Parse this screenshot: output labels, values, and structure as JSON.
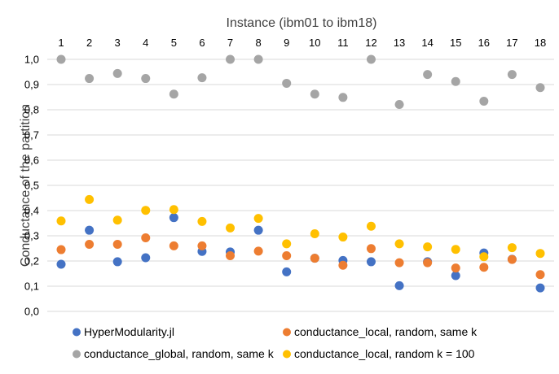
{
  "chart_data": {
    "type": "scatter",
    "title": "",
    "xlabel": "Instance (ibm01 to ibm18)",
    "ylabel": "Conductance of the partition",
    "x": [
      1,
      2,
      3,
      4,
      5,
      6,
      7,
      8,
      9,
      10,
      11,
      12,
      13,
      14,
      15,
      16,
      17,
      18
    ],
    "x_tick_labels": [
      "1",
      "2",
      "3",
      "4",
      "5",
      "6",
      "7",
      "8",
      "9",
      "10",
      "11",
      "12",
      "13",
      "14",
      "15",
      "16",
      "17",
      "18"
    ],
    "x_axis_position": "top",
    "ylim": [
      0,
      1.0
    ],
    "y_ticks": [
      0,
      0.1,
      0.2,
      0.3,
      0.4,
      0.5,
      0.6,
      0.7,
      0.8,
      0.9,
      1.0
    ],
    "y_tick_labels": [
      "0,0",
      "0,1",
      "0,2",
      "0,3",
      "0,4",
      "0,5",
      "0,6",
      "0,7",
      "0,8",
      "0,9",
      "1,0"
    ],
    "grid": "horizontal",
    "legend_position": "bottom",
    "series": [
      {
        "name": "HyperModularity.jl",
        "color": "#4472c4",
        "values": [
          0.187,
          0.322,
          0.197,
          0.213,
          0.372,
          0.238,
          0.236,
          0.322,
          0.157,
          0.211,
          0.202,
          0.197,
          0.102,
          0.197,
          0.142,
          0.232,
          0.207,
          0.093
        ]
      },
      {
        "name": "conductance_local, random, same k",
        "color": "#ed7d31",
        "values": [
          0.245,
          0.266,
          0.266,
          0.292,
          0.26,
          0.26,
          0.221,
          0.239,
          0.221,
          0.211,
          0.183,
          0.249,
          0.193,
          0.193,
          0.172,
          0.175,
          0.206,
          0.146
        ]
      },
      {
        "name": "conductance_global, random, same k",
        "color": "#a5a5a5",
        "values": [
          1.0,
          0.924,
          0.944,
          0.924,
          0.862,
          0.927,
          1.0,
          1.0,
          0.905,
          0.862,
          0.849,
          1.0,
          0.821,
          0.94,
          0.912,
          0.834,
          0.94,
          0.888
        ]
      },
      {
        "name": "conductance_local, random k = 100",
        "color": "#ffc000",
        "values": [
          0.359,
          0.444,
          0.362,
          0.401,
          0.404,
          0.357,
          0.331,
          0.369,
          0.268,
          0.308,
          0.295,
          0.338,
          0.268,
          0.256,
          0.246,
          0.217,
          0.253,
          0.23
        ]
      }
    ]
  }
}
